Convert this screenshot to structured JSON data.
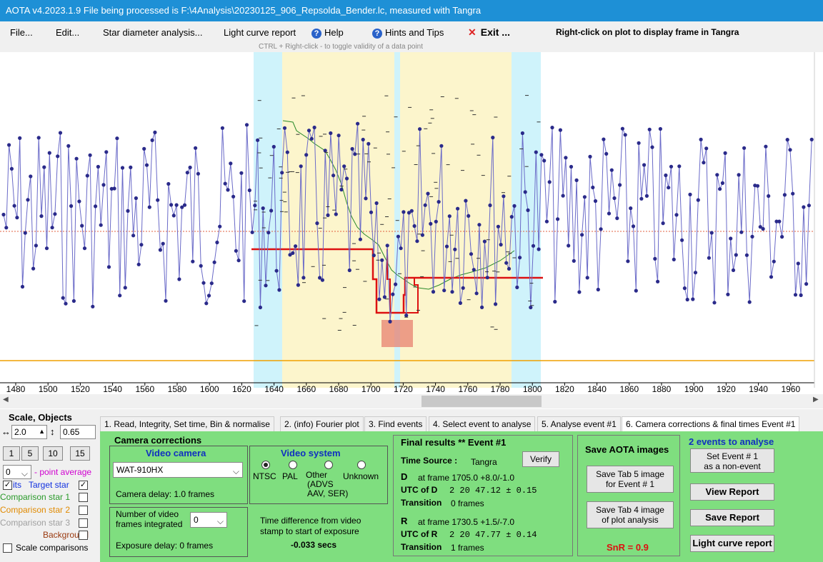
{
  "window": {
    "title": "AOTA v4.2023.1.9    File being processed is F:\\4Analysis\\20230125_906_Repsolda_Bender.lc, measured with Tangra"
  },
  "menu": {
    "file": "File...",
    "edit": "Edit...",
    "star_diameter": "Star diameter analysis...",
    "light_curve_report": "Light curve report",
    "help": "Help",
    "hints": "Hints and Tips",
    "exit": "Exit ...",
    "right_click_note": "Right-click on plot to display frame in Tangra",
    "ctrl_hint": "CTRL + Right-click  -  to toggle validity of a data point"
  },
  "plot": {
    "x_ticks": [
      "1480",
      "1500",
      "1520",
      "1540",
      "1560",
      "1580",
      "1600",
      "1620",
      "1640",
      "1660",
      "1680",
      "1700",
      "1720",
      "1740",
      "1760",
      "1780",
      "1800",
      "1820",
      "1840",
      "1860",
      "1880",
      "1900",
      "1920",
      "1940",
      "1960"
    ],
    "colors": {
      "series": "#2a2a8a",
      "line": "#6a6ac8",
      "event": "#dd1111",
      "baseline": "#f0a000",
      "mean": "#e06040",
      "comparison": "#2a8a2a",
      "cyan": "#cff3fb",
      "yellow": "#fcf5cc"
    }
  },
  "left_panel": {
    "scale_objects": "Scale,  Objects",
    "scale_value": "2.0",
    "scale_value2": "0.65",
    "buttons": [
      "1",
      "5",
      "10",
      "15"
    ],
    "point_avg_value": "0",
    "point_avg_label": "- point average",
    "objects": [
      {
        "label": "Target star",
        "prefix": "its",
        "color": "#1030e0",
        "checked": true,
        "checked2": true
      },
      {
        "label": "Comparison star 1",
        "color": "#2a9a2a",
        "checked": false
      },
      {
        "label": "Comparison star 2",
        "color": "#e08a00",
        "checked": false
      },
      {
        "label": "Comparison star 3",
        "color": "#a0a0a0",
        "checked": false
      },
      {
        "label": "Background",
        "color": "#9a3a10",
        "checked": false
      }
    ],
    "scale_comparisons": "Scale comparisons"
  },
  "tabs": [
    "1.  Read, Integrity, Set time, Bin & normalise",
    "2. (info)  Fourier plot",
    "3. Find events",
    "4. Select event to analyse",
    "5. Analyse event #1",
    "6. Camera corrections & final times Event #1"
  ],
  "camera_corrections": {
    "title": "Camera corrections",
    "video_camera_label": "Video camera",
    "camera_value": "WAT-910HX",
    "camera_delay": "Camera delay: 1.0 frames",
    "video_system_label": "Video system",
    "systems": [
      "NTSC",
      "PAL",
      "Other",
      "Unknown"
    ],
    "other_sub1": "(ADVS",
    "other_sub2": "AAV, SER)",
    "frames_integrated_line1": "Number of video",
    "frames_integrated_line2": "frames integrated",
    "frames_value": "0",
    "exposure_delay": "Exposure delay: 0 frames",
    "time_diff_line1": "Time difference from video",
    "time_diff_line2": "stamp to start of exposure",
    "time_diff_value": "-0.033 secs"
  },
  "final_results": {
    "title": "Final results  **  Event #1",
    "time_source_label": "Time Source :",
    "time_source_value": "Tangra",
    "verify": "Verify",
    "d_label": "D",
    "d_frame": "at frame 1705.0  +8.0/-1.0",
    "utc_d_label": "UTC of D",
    "utc_d_value": "2 20 47.12  ± 0.15",
    "transition_label": "Transition",
    "transition_d": "0 frames",
    "r_label": "R",
    "r_frame": "at frame 1730.5  +1.5/-7.0",
    "utc_r_label": "UTC of R",
    "utc_r_value": "2 20 47.77  ± 0.14",
    "transition_r": "1 frames"
  },
  "save_images": {
    "title": "Save AOTA images",
    "tab5_line1": "Save Tab 5 image",
    "tab5_line2": "for Event # 1",
    "tab4_line1": "Save Tab 4 image",
    "tab4_line2": "of plot analysis",
    "snr": "SnR = 0.9"
  },
  "events": {
    "title": "2  events to analyse",
    "set_event_line1": "Set Event # 1",
    "set_event_line2": "as a non-event",
    "view_report": "View Report",
    "save_report": "Save Report",
    "light_curve_report": "Light curve report"
  }
}
